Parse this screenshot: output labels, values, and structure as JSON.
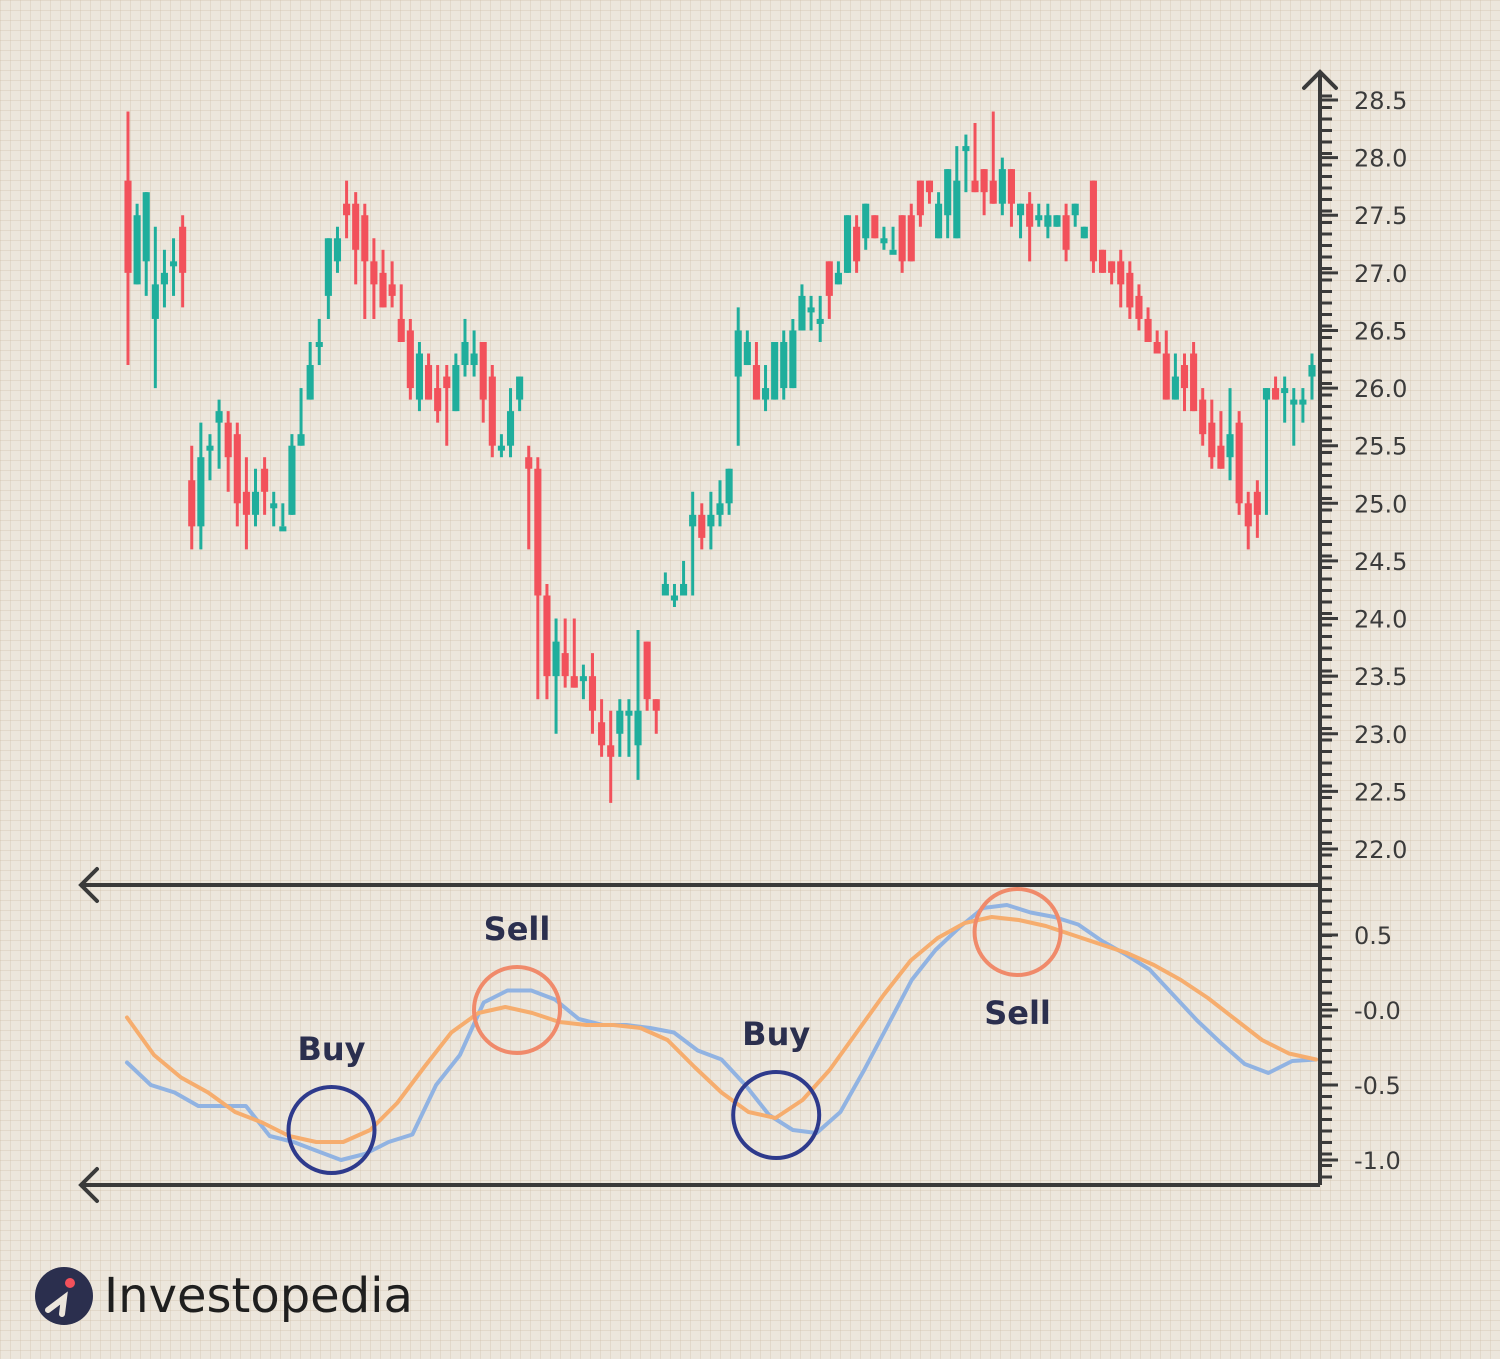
{
  "chart_data": [
    {
      "type": "candlestick",
      "y_ticks": [
        "28.5",
        "28.0",
        "27.5",
        "27.0",
        "26.5",
        "26.0",
        "25.5",
        "25.0",
        "24.5",
        "24.0",
        "23.5",
        "23.0",
        "22.5",
        "22.0"
      ],
      "ylim": [
        21.7,
        28.8
      ],
      "colors": {
        "up": "#1fae9c",
        "down": "#f2515b"
      },
      "candles": [
        [
          27.8,
          27.0,
          28.4,
          26.2
        ],
        [
          26.9,
          27.5,
          27.6,
          26.9
        ],
        [
          27.1,
          27.7,
          27.7,
          26.8
        ],
        [
          26.6,
          26.9,
          27.4,
          26.0
        ],
        [
          26.9,
          27.0,
          27.2,
          26.7
        ],
        [
          27.1,
          27.1,
          27.3,
          26.8
        ],
        [
          27.4,
          27.0,
          27.5,
          26.7
        ],
        [
          25.2,
          24.8,
          25.5,
          24.6
        ],
        [
          24.8,
          25.4,
          25.7,
          24.6
        ],
        [
          25.5,
          25.5,
          25.6,
          25.2
        ],
        [
          25.7,
          25.8,
          25.9,
          25.3
        ],
        [
          25.7,
          25.4,
          25.8,
          25.1
        ],
        [
          25.6,
          25.0,
          25.7,
          24.8
        ],
        [
          25.1,
          24.9,
          25.4,
          24.6
        ],
        [
          24.9,
          25.1,
          25.3,
          24.8
        ],
        [
          25.3,
          25.1,
          25.4,
          24.9
        ],
        [
          25.0,
          25.0,
          25.1,
          24.8
        ],
        [
          24.8,
          24.8,
          25.0,
          24.8
        ],
        [
          24.9,
          25.5,
          25.6,
          24.9
        ],
        [
          25.5,
          25.6,
          26.0,
          25.5
        ],
        [
          25.9,
          26.2,
          26.4,
          25.9
        ],
        [
          26.4,
          26.4,
          26.6,
          26.2
        ],
        [
          26.8,
          27.3,
          27.3,
          26.6
        ],
        [
          27.1,
          27.3,
          27.4,
          27.0
        ],
        [
          27.6,
          27.5,
          27.8,
          27.3
        ],
        [
          27.6,
          27.2,
          27.7,
          26.9
        ],
        [
          27.5,
          27.1,
          27.6,
          26.6
        ],
        [
          27.1,
          26.9,
          27.3,
          26.6
        ],
        [
          27.0,
          26.7,
          27.2,
          26.7
        ],
        [
          26.9,
          26.8,
          27.1,
          26.7
        ],
        [
          26.6,
          26.4,
          26.9,
          26.4
        ],
        [
          26.5,
          26.0,
          26.6,
          25.9
        ],
        [
          25.9,
          26.3,
          26.4,
          25.8
        ],
        [
          26.2,
          25.9,
          26.3,
          25.9
        ],
        [
          26.0,
          25.8,
          26.2,
          25.7
        ],
        [
          26.1,
          26.0,
          26.2,
          25.5
        ],
        [
          25.8,
          26.2,
          26.3,
          25.8
        ],
        [
          26.2,
          26.4,
          26.6,
          26.1
        ],
        [
          26.2,
          26.3,
          26.5,
          26.1
        ],
        [
          26.4,
          25.9,
          26.4,
          25.7
        ],
        [
          26.1,
          25.5,
          26.2,
          25.4
        ],
        [
          25.5,
          25.5,
          25.6,
          25.4
        ],
        [
          25.5,
          25.8,
          26.0,
          25.4
        ],
        [
          25.9,
          26.1,
          26.1,
          25.8
        ],
        [
          25.4,
          25.3,
          25.5,
          24.6
        ],
        [
          25.3,
          24.2,
          25.4,
          23.3
        ],
        [
          24.2,
          23.5,
          24.3,
          23.3
        ],
        [
          23.5,
          23.8,
          24.0,
          23.0
        ],
        [
          23.7,
          23.5,
          24.0,
          23.4
        ],
        [
          23.5,
          23.4,
          24.0,
          23.4
        ],
        [
          23.5,
          23.5,
          23.6,
          23.3
        ],
        [
          23.5,
          23.2,
          23.7,
          23.0
        ],
        [
          23.1,
          22.9,
          23.3,
          22.8
        ],
        [
          22.9,
          22.8,
          23.2,
          22.4
        ],
        [
          23.0,
          23.2,
          23.3,
          22.8
        ],
        [
          23.2,
          23.2,
          23.3,
          22.8
        ],
        [
          22.9,
          23.2,
          23.9,
          22.6
        ],
        [
          23.8,
          23.3,
          23.8,
          23.2
        ],
        [
          23.3,
          23.2,
          23.3,
          23.0
        ],
        [
          24.2,
          24.3,
          24.4,
          24.2
        ],
        [
          24.2,
          24.2,
          24.3,
          24.1
        ],
        [
          24.2,
          24.3,
          24.5,
          24.2
        ],
        [
          24.8,
          24.9,
          25.1,
          24.2
        ],
        [
          24.9,
          24.7,
          25.0,
          24.6
        ],
        [
          24.8,
          24.9,
          25.1,
          24.6
        ],
        [
          24.9,
          25.0,
          25.2,
          24.8
        ],
        [
          25.0,
          25.3,
          25.3,
          24.9
        ],
        [
          26.1,
          26.5,
          26.7,
          25.5
        ],
        [
          26.2,
          26.4,
          26.5,
          26.2
        ],
        [
          26.2,
          25.9,
          26.4,
          25.9
        ],
        [
          25.9,
          26.0,
          26.2,
          25.8
        ],
        [
          25.9,
          26.4,
          26.4,
          25.9
        ],
        [
          26.0,
          26.4,
          26.5,
          25.9
        ],
        [
          26.0,
          26.5,
          26.6,
          26.0
        ],
        [
          26.5,
          26.8,
          26.9,
          26.5
        ],
        [
          26.7,
          26.7,
          26.8,
          26.5
        ],
        [
          26.6,
          26.6,
          26.8,
          26.4
        ],
        [
          27.1,
          26.8,
          27.1,
          26.6
        ],
        [
          26.9,
          27.0,
          27.1,
          26.9
        ],
        [
          27.0,
          27.5,
          27.5,
          27.0
        ],
        [
          27.4,
          27.1,
          27.5,
          27.0
        ],
        [
          27.3,
          27.6,
          27.6,
          27.2
        ],
        [
          27.5,
          27.3,
          27.5,
          27.3
        ],
        [
          27.3,
          27.3,
          27.4,
          27.2
        ],
        [
          27.2,
          27.2,
          27.4,
          27.2
        ],
        [
          27.5,
          27.1,
          27.5,
          27.0
        ],
        [
          27.5,
          27.1,
          27.6,
          27.1
        ],
        [
          27.8,
          27.5,
          27.8,
          27.4
        ],
        [
          27.8,
          27.7,
          27.8,
          27.6
        ],
        [
          27.3,
          27.6,
          27.7,
          27.3
        ],
        [
          27.5,
          27.9,
          27.9,
          27.3
        ],
        [
          27.3,
          27.8,
          28.1,
          27.3
        ],
        [
          28.1,
          28.1,
          28.2,
          27.7
        ],
        [
          27.8,
          27.7,
          28.3,
          27.7
        ],
        [
          27.9,
          27.7,
          27.9,
          27.5
        ],
        [
          27.8,
          27.6,
          28.4,
          27.6
        ],
        [
          27.6,
          27.9,
          28.0,
          27.5
        ],
        [
          27.9,
          27.6,
          27.9,
          27.4
        ],
        [
          27.5,
          27.6,
          27.6,
          27.3
        ],
        [
          27.6,
          27.4,
          27.7,
          27.1
        ],
        [
          27.5,
          27.5,
          27.6,
          27.4
        ],
        [
          27.4,
          27.5,
          27.6,
          27.3
        ],
        [
          27.4,
          27.5,
          27.5,
          27.4
        ],
        [
          27.5,
          27.2,
          27.6,
          27.1
        ],
        [
          27.5,
          27.6,
          27.6,
          27.4
        ],
        [
          27.3,
          27.4,
          27.4,
          27.3
        ],
        [
          27.8,
          27.1,
          27.8,
          27.0
        ],
        [
          27.2,
          27.0,
          27.2,
          27.0
        ],
        [
          27.1,
          27.0,
          27.1,
          26.9
        ],
        [
          27.1,
          26.9,
          27.2,
          26.7
        ],
        [
          27.0,
          26.7,
          27.1,
          26.6
        ],
        [
          26.8,
          26.6,
          26.9,
          26.5
        ],
        [
          26.6,
          26.4,
          26.7,
          26.5
        ],
        [
          26.4,
          26.3,
          26.5,
          26.3
        ],
        [
          26.3,
          25.9,
          26.5,
          25.9
        ],
        [
          25.9,
          26.1,
          26.3,
          25.9
        ],
        [
          26.2,
          26.0,
          26.3,
          25.8
        ],
        [
          26.3,
          25.8,
          26.4,
          25.8
        ],
        [
          25.9,
          25.6,
          26.0,
          25.5
        ],
        [
          25.7,
          25.4,
          25.9,
          25.3
        ],
        [
          25.5,
          25.3,
          25.8,
          25.3
        ],
        [
          25.4,
          25.6,
          26.0,
          25.2
        ],
        [
          25.7,
          25.0,
          25.8,
          24.9
        ],
        [
          25.0,
          24.8,
          25.1,
          24.6
        ],
        [
          25.1,
          24.9,
          25.2,
          24.7
        ],
        [
          25.9,
          26.0,
          26.0,
          24.9
        ],
        [
          26.0,
          25.9,
          26.1,
          25.9
        ],
        [
          26.0,
          26.0,
          26.1,
          25.7
        ],
        [
          25.9,
          25.9,
          26.0,
          25.5
        ],
        [
          25.9,
          25.9,
          26.0,
          25.7
        ],
        [
          26.1,
          26.2,
          26.3,
          25.9
        ]
      ]
    },
    {
      "type": "line",
      "y_ticks": [
        "0.5",
        "-0.0",
        "-0.5",
        "-1.0"
      ],
      "ylim": [
        -1.15,
        0.75
      ],
      "series": [
        {
          "color": "#91b3e2",
          "values": [
            -0.35,
            -0.5,
            -0.55,
            -0.64,
            -0.64,
            -0.64,
            -0.84,
            -0.88,
            -0.94,
            -1.0,
            -0.96,
            -0.88,
            -0.83,
            -0.5,
            -0.3,
            0.05,
            0.13,
            0.13,
            0.07,
            -0.06,
            -0.1,
            -0.1,
            -0.12,
            -0.15,
            -0.27,
            -0.33,
            -0.5,
            -0.7,
            -0.8,
            -0.82,
            -0.68,
            -0.4,
            -0.1,
            0.2,
            0.4,
            0.55,
            0.68,
            0.7,
            0.65,
            0.62,
            0.57,
            0.46,
            0.37,
            0.27,
            0.1,
            -0.07,
            -0.22,
            -0.36,
            -0.42,
            -0.34,
            -0.33
          ]
        },
        {
          "color": "#f6ad6e",
          "values": [
            -0.05,
            -0.3,
            -0.45,
            -0.55,
            -0.68,
            -0.75,
            -0.84,
            -0.88,
            -0.88,
            -0.8,
            -0.62,
            -0.38,
            -0.15,
            -0.02,
            0.02,
            -0.02,
            -0.08,
            -0.1,
            -0.1,
            -0.12,
            -0.2,
            -0.38,
            -0.55,
            -0.68,
            -0.72,
            -0.6,
            -0.4,
            -0.15,
            0.1,
            0.33,
            0.48,
            0.58,
            0.62,
            0.6,
            0.56,
            0.5,
            0.44,
            0.38,
            0.3,
            0.2,
            0.08,
            -0.06,
            -0.2,
            -0.29,
            -0.33
          ]
        }
      ],
      "annotations": [
        {
          "label": "Buy",
          "color": "#2e3a8c",
          "x_frac": 0.172,
          "y": -0.8
        },
        {
          "label": "Sell",
          "color": "#f08a6a",
          "x_frac": 0.328,
          "y": 0.0
        },
        {
          "label": "Buy",
          "color": "#2e3a8c",
          "x_frac": 0.546,
          "y": -0.7
        },
        {
          "label": "Sell",
          "color": "#f08a6a",
          "x_frac": 0.749,
          "y": 0.52
        }
      ]
    }
  ],
  "brand": {
    "name": "Investopedia",
    "icon": "investopedia-logo-icon"
  }
}
